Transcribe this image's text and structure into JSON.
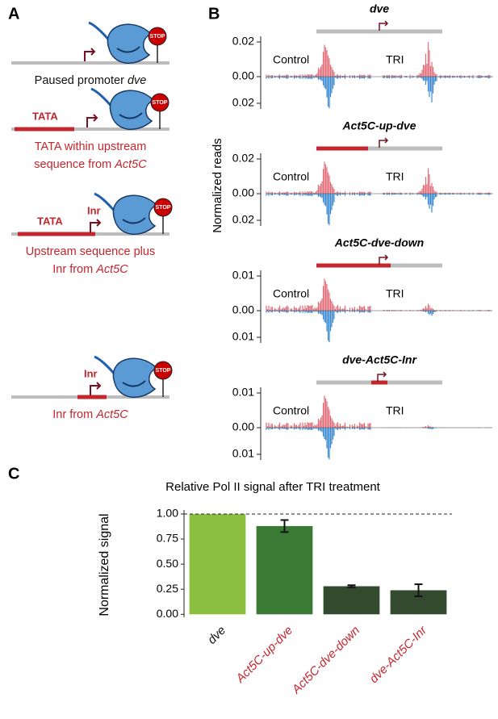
{
  "panel_a": {
    "letter": "A",
    "items": [
      {
        "parts": [
          {
            "text": "Paused promoter ",
            "style": "plain"
          },
          {
            "text": "dve",
            "style": "italic"
          }
        ],
        "color": "#111111"
      },
      {
        "box_label": "TATA",
        "parts": [
          {
            "text": "TATA within upstream",
            "style": "plain"
          },
          {
            "text": "sequence from ",
            "style": "plain",
            "newline": true
          },
          {
            "text": "Act5C",
            "style": "italic"
          }
        ],
        "color": "#c4262e"
      },
      {
        "box_label": "TATA",
        "inr_label": "Inr",
        "parts": [
          {
            "text": "Upstream sequence plus",
            "style": "plain"
          },
          {
            "text": "Inr from ",
            "style": "plain",
            "newline": true
          },
          {
            "text": "Act5C",
            "style": "italic"
          }
        ],
        "color": "#c4262e"
      },
      {
        "inr_label": "Inr",
        "parts": [
          {
            "text": "Inr from ",
            "style": "plain"
          },
          {
            "text": "Act5C",
            "style": "italic"
          }
        ],
        "color": "#c4262e"
      }
    ],
    "stop_label": "STOP"
  },
  "panel_b": {
    "letter": "B",
    "y_label": "Normalized reads",
    "tracks": [
      {
        "title": "dve",
        "left_label": "Control",
        "right_label": "TRI",
        "ticks": [
          "0.02",
          "0.00",
          "0.02"
        ]
      },
      {
        "title": "Act5C-up-dve",
        "left_label": "Control",
        "right_label": "TRI",
        "ticks": [
          "0.02",
          "0.00",
          "0.02"
        ]
      },
      {
        "title": "Act5C-dve-down",
        "left_label": "Control",
        "right_label": "TRI",
        "ticks": [
          "0.01",
          "0.00",
          "0.01"
        ]
      },
      {
        "title": "dve-Act5C-Inr",
        "left_label": "Control",
        "right_label": "TRI",
        "ticks": [
          "0.01",
          "0.00",
          "0.01"
        ]
      }
    ]
  },
  "panel_c": {
    "letter": "C"
  },
  "chart_data": {
    "type": "bar",
    "title": "Relative Pol II signal after TRI treatment",
    "y_label": "Normalized signal",
    "categories": [
      "dve",
      "Act5C-up-dve",
      "Act5C-dve-down",
      "dve-Act5C-Inr"
    ],
    "values": [
      1.0,
      0.88,
      0.28,
      0.24
    ],
    "errors": [
      null,
      0.06,
      0.01,
      0.06
    ],
    "colors": [
      "#8cbf3f",
      "#3b7a34",
      "#344a2e",
      "#344a2e"
    ],
    "reference_line": 1.0,
    "ylim": [
      -0.03,
      1.04
    ],
    "yticks": [
      {
        "value": 0,
        "label": "0.00"
      },
      0.25,
      {
        "value": 0.5,
        "label": "0.50"
      },
      0.75,
      {
        "value": 1,
        "label": "1.00"
      }
    ]
  }
}
